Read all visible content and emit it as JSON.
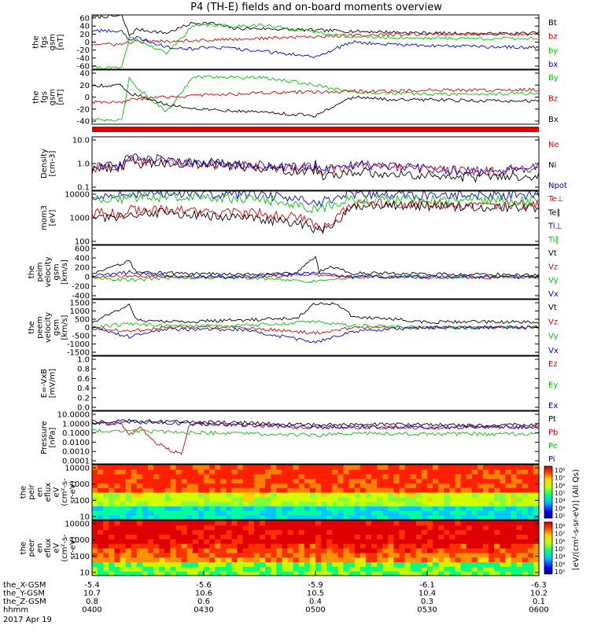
{
  "title": "P4 (TH-E) fields and on-board moments overview",
  "x_axis": {
    "hhmm_ticks": [
      "0400",
      "0430",
      "0500",
      "0530",
      "0600"
    ],
    "rows": [
      {
        "label": "the_X-GSM",
        "values": [
          "-5.4",
          "-5.6",
          "-5.9",
          "-6.1",
          "-6.3"
        ]
      },
      {
        "label": "the_Y-GSM",
        "values": [
          "10.7",
          "10.6",
          "10.5",
          "10.4",
          "10.2"
        ]
      },
      {
        "label": "the_Z-GSM",
        "values": [
          "0.8",
          "0.6",
          "0.4",
          "0.3",
          "0.1"
        ]
      },
      {
        "label": "hhmm",
        "values": [
          "0400",
          "0430",
          "0500",
          "0530",
          "0600"
        ]
      }
    ],
    "date": "2017 Apr 19"
  },
  "colorbar_label": "[eV/(cm²-s-sr-eV)] (All Qs)",
  "colorbar_ticks": [
    "10⁸",
    "10⁷",
    "10⁶",
    "10⁵",
    "10⁴",
    "10³",
    "10²"
  ],
  "colors": {
    "black": "#000000",
    "red": "#e00000",
    "green": "#00c800",
    "blue": "#0000e0"
  },
  "chart_data": [
    {
      "type": "line",
      "panel": "fgs_gsm",
      "ylabel_lines": [
        "the",
        "fgs",
        "gsm",
        "[nT]"
      ],
      "yticks": [
        "60",
        "40",
        "20",
        "0",
        "-20",
        "-40",
        "-60"
      ],
      "ylim": [
        -60,
        60
      ],
      "x_unit": "minutes after 0400",
      "series": [
        {
          "name": "Bt",
          "color": "#000000",
          "x": [
            0,
            8,
            10,
            12,
            20,
            27,
            32,
            38,
            45,
            60,
            70,
            80,
            90,
            105,
            120
          ],
          "y": [
            55,
            58,
            15,
            28,
            20,
            42,
            42,
            30,
            30,
            26,
            24,
            22,
            20,
            18,
            20
          ]
        },
        {
          "name": "bz",
          "color": "#e00000",
          "x": [
            0,
            8,
            10,
            20,
            32,
            45,
            60,
            70,
            80,
            90,
            105,
            120
          ],
          "y": [
            -5,
            -5,
            0,
            2,
            5,
            8,
            12,
            15,
            16,
            18,
            17,
            18
          ]
        },
        {
          "name": "by",
          "color": "#00c800",
          "x": [
            0,
            8,
            10,
            12,
            20,
            27,
            32,
            38,
            45,
            60,
            70,
            80,
            90,
            105,
            120
          ],
          "y": [
            -55,
            -58,
            10,
            5,
            -25,
            35,
            38,
            35,
            38,
            22,
            12,
            10,
            9,
            8,
            8
          ]
        },
        {
          "name": "bx",
          "color": "#0000e0",
          "x": [
            0,
            8,
            10,
            12,
            20,
            27,
            32,
            38,
            45,
            60,
            70,
            80,
            90,
            105,
            120
          ],
          "y": [
            25,
            25,
            5,
            10,
            -10,
            -15,
            -10,
            -15,
            -20,
            -32,
            0,
            -5,
            -8,
            -10,
            -12
          ]
        }
      ]
    },
    {
      "type": "line",
      "panel": "fgs_gsm_mgse",
      "ylabel_lines": [
        "the",
        "fgs",
        "gsm",
        "[nT]"
      ],
      "yticks": [
        "40",
        "20",
        "0",
        "-20",
        "-40"
      ],
      "ylim": [
        -55,
        55
      ],
      "series": [
        {
          "name": "By",
          "color": "#00c800",
          "x": [
            0,
            8,
            10,
            12,
            20,
            27,
            32,
            38,
            45,
            60,
            70,
            80,
            90,
            105,
            120
          ],
          "y": [
            -45,
            -48,
            40,
            20,
            -30,
            40,
            42,
            40,
            40,
            25,
            10,
            8,
            6,
            6,
            8
          ]
        },
        {
          "name": "Bz",
          "color": "#e00000",
          "x": [
            0,
            8,
            10,
            20,
            32,
            45,
            60,
            70,
            80,
            90,
            105,
            120
          ],
          "y": [
            -10,
            -12,
            -5,
            0,
            5,
            8,
            10,
            12,
            12,
            14,
            14,
            15
          ]
        },
        {
          "name": "Bx",
          "color": "#000000",
          "x": [
            0,
            8,
            10,
            12,
            20,
            27,
            32,
            38,
            45,
            60,
            70,
            80,
            90,
            105,
            120
          ],
          "y": [
            22,
            25,
            5,
            5,
            -15,
            -22,
            -25,
            -28,
            -30,
            -38,
            0,
            -5,
            -5,
            -8,
            -8
          ]
        }
      ]
    },
    {
      "type": "line",
      "panel": "density",
      "ylabel_lines": [
        "Density",
        "[cm-3]"
      ],
      "yticks": [
        "10.0",
        "1.0",
        "0.1"
      ],
      "ylim": [
        0.1,
        10
      ],
      "log": true,
      "series": [
        {
          "name": "Ne",
          "color": "#e00000",
          "x": [
            0,
            8,
            10,
            12,
            20,
            30,
            45,
            55,
            60,
            62,
            70,
            80,
            90,
            105,
            120
          ],
          "y": [
            0.7,
            0.8,
            1.8,
            1.2,
            1.2,
            1.0,
            0.8,
            0.6,
            0.8,
            0.5,
            0.9,
            0.8,
            0.6,
            0.5,
            0.6
          ]
        },
        {
          "name": "Ni",
          "color": "#000000",
          "x": [
            0,
            8,
            10,
            12,
            20,
            30,
            45,
            55,
            60,
            62,
            70,
            80,
            90,
            105,
            120
          ],
          "y": [
            0.6,
            0.7,
            1.5,
            1.0,
            1.0,
            0.9,
            0.7,
            0.5,
            0.6,
            0.3,
            0.5,
            0.4,
            0.35,
            0.3,
            0.35
          ]
        },
        {
          "name": "Npot",
          "color": "#0000e0",
          "x": [
            0,
            8,
            10,
            12,
            20,
            30,
            45,
            55,
            60,
            62,
            70,
            80,
            90,
            105,
            120
          ],
          "y": [
            0.8,
            0.9,
            2.5,
            2.0,
            1.3,
            1.1,
            0.9,
            0.7,
            0.9,
            0.6,
            0.9,
            0.8,
            0.6,
            0.5,
            0.7
          ]
        }
      ]
    },
    {
      "type": "line",
      "panel": "temperature",
      "ylabel_lines": [
        "mom3",
        "[eV]"
      ],
      "yticks": [
        "10000",
        "1000",
        "100"
      ],
      "ylim": [
        100,
        10000
      ],
      "log": true,
      "series": [
        {
          "name": "Te⊥",
          "color": "#e00000",
          "x": [
            0,
            8,
            10,
            20,
            30,
            45,
            55,
            60,
            62,
            70,
            80,
            90,
            105,
            120
          ],
          "y": [
            1500,
            1500,
            2000,
            2000,
            1600,
            1500,
            1000,
            600,
            400,
            3000,
            3500,
            3200,
            3000,
            3000
          ]
        },
        {
          "name": "Te∥",
          "color": "#000000",
          "x": [
            0,
            8,
            10,
            20,
            30,
            45,
            55,
            60,
            62,
            70,
            80,
            90,
            105,
            120
          ],
          "y": [
            1000,
            1000,
            1500,
            1600,
            1200,
            900,
            600,
            400,
            300,
            2500,
            3000,
            2800,
            2500,
            2500
          ]
        },
        {
          "name": "Ti⊥",
          "color": "#0000e0",
          "x": [
            0,
            8,
            10,
            20,
            30,
            45,
            55,
            60,
            62,
            70,
            80,
            90,
            105,
            120
          ],
          "y": [
            7000,
            7000,
            8500,
            8000,
            8000,
            7500,
            5000,
            3000,
            4000,
            8000,
            7500,
            7000,
            7000,
            7000
          ]
        },
        {
          "name": "Ti∥",
          "color": "#00c800",
          "x": [
            0,
            8,
            10,
            20,
            30,
            45,
            55,
            60,
            62,
            70,
            80,
            90,
            105,
            120
          ],
          "y": [
            5000,
            5000,
            6000,
            6000,
            6000,
            5000,
            3000,
            2000,
            2500,
            5000,
            5000,
            4800,
            4500,
            4500
          ]
        }
      ]
    },
    {
      "type": "line",
      "panel": "peim_velocity",
      "ylabel_lines": [
        "the",
        "peim",
        "velocity",
        "gsm",
        "[km/s]"
      ],
      "yticks": [
        "600",
        "400",
        "200",
        "0",
        "-200",
        "-400"
      ],
      "ylim": [
        -400,
        600
      ],
      "series": [
        {
          "name": "Vt",
          "color": "#000000",
          "x": [
            0,
            10,
            12,
            20,
            40,
            55,
            60,
            61,
            64,
            70,
            90,
            120
          ],
          "y": [
            50,
            300,
            100,
            80,
            60,
            80,
            400,
            100,
            200,
            80,
            60,
            50
          ]
        },
        {
          "name": "Vz",
          "color": "#e00000",
          "x": [
            0,
            10,
            20,
            40,
            60,
            70,
            90,
            120
          ],
          "y": [
            0,
            30,
            10,
            0,
            50,
            10,
            0,
            0
          ]
        },
        {
          "name": "Vy",
          "color": "#00c800",
          "x": [
            0,
            10,
            20,
            40,
            60,
            70,
            90,
            120
          ],
          "y": [
            0,
            -50,
            -10,
            0,
            -80,
            0,
            10,
            0
          ]
        },
        {
          "name": "Vx",
          "color": "#0000e0",
          "x": [
            0,
            10,
            20,
            40,
            60,
            70,
            90,
            120
          ],
          "y": [
            20,
            100,
            30,
            10,
            80,
            20,
            10,
            10
          ]
        }
      ]
    },
    {
      "type": "line",
      "panel": "peem_velocity",
      "ylabel_lines": [
        "the",
        "peem",
        "velocity",
        "gsm",
        "[km/s]"
      ],
      "yticks": [
        "1500",
        "1000",
        "500",
        "0",
        "-500",
        "-1000",
        "-1500"
      ],
      "ylim": [
        -1500,
        1500
      ],
      "series": [
        {
          "name": "Vt",
          "color": "#000000",
          "x": [
            0,
            10,
            12,
            20,
            40,
            55,
            60,
            65,
            70,
            90,
            120
          ],
          "y": [
            300,
            1200,
            400,
            300,
            400,
            500,
            1300,
            1300,
            600,
            300,
            300
          ]
        },
        {
          "name": "Vz",
          "color": "#e00000",
          "x": [
            0,
            10,
            20,
            40,
            60,
            70,
            90,
            120
          ],
          "y": [
            0,
            -200,
            0,
            0,
            -300,
            0,
            0,
            0
          ]
        },
        {
          "name": "Vy",
          "color": "#00c800",
          "x": [
            0,
            10,
            20,
            40,
            60,
            70,
            90,
            120
          ],
          "y": [
            0,
            200,
            100,
            100,
            300,
            100,
            0,
            0
          ]
        },
        {
          "name": "Vx",
          "color": "#0000e0",
          "x": [
            0,
            10,
            20,
            40,
            60,
            70,
            90,
            120
          ],
          "y": [
            0,
            -500,
            -100,
            -100,
            -800,
            -200,
            0,
            0
          ]
        }
      ]
    },
    {
      "type": "line",
      "panel": "e_field",
      "ylabel_lines": [
        "E=-VxB",
        "[mV/m]"
      ],
      "yticks": [
        "1.0",
        "0.8",
        "0.6",
        "0.4",
        "0.2",
        "0.0"
      ],
      "ylim": [
        0,
        1
      ],
      "series": [
        {
          "name": "Ez",
          "color": "#e00000",
          "x": [],
          "y": []
        },
        {
          "name": "Ey",
          "color": "#00c800",
          "x": [],
          "y": []
        },
        {
          "name": "Ex",
          "color": "#0000e0",
          "x": [],
          "y": []
        }
      ]
    },
    {
      "type": "line",
      "panel": "pressure",
      "ylabel_lines": [
        "Pressure",
        "[nPa]"
      ],
      "yticks": [
        "10.0000",
        "1.0000",
        "0.1000",
        "0.0100",
        "0.0010",
        "0.0001"
      ],
      "ylim": [
        0.0001,
        10
      ],
      "log": true,
      "series": [
        {
          "name": "Pt",
          "color": "#000000",
          "x": [
            0,
            10,
            20,
            40,
            60,
            70,
            90,
            120
          ],
          "y": [
            1.0,
            1.2,
            1.0,
            0.8,
            0.5,
            0.6,
            0.5,
            0.5
          ]
        },
        {
          "name": "Pb",
          "color": "#e00000",
          "x": [
            0,
            8,
            10,
            13,
            16,
            20,
            24,
            25,
            26,
            30,
            40,
            55,
            60,
            70,
            90,
            120
          ],
          "y": [
            0.7,
            0.7,
            0.05,
            0.3,
            0.02,
            0.003,
            0.0008,
            0.01,
            0.5,
            0.6,
            0.5,
            0.3,
            0.3,
            0.3,
            0.3,
            0.35
          ]
        },
        {
          "name": "Pe",
          "color": "#00c800",
          "x": [
            0,
            10,
            20,
            40,
            60,
            70,
            90,
            120
          ],
          "y": [
            0.12,
            0.15,
            0.1,
            0.08,
            0.05,
            0.08,
            0.07,
            0.07
          ]
        },
        {
          "name": "Pi",
          "color": "#0000e0",
          "x": [
            0,
            10,
            20,
            40,
            60,
            70,
            90,
            120
          ],
          "y": [
            0.6,
            0.9,
            0.8,
            0.5,
            0.3,
            0.3,
            0.3,
            0.3
          ]
        }
      ]
    },
    {
      "type": "heatmap",
      "panel": "peir_en_eflux",
      "ylabel_lines": [
        "the",
        "peir",
        "en",
        "eflux",
        "eV",
        "(cm²-s-",
        "sr-eV)"
      ],
      "yticks": [
        "10000",
        "1000",
        "100",
        "10"
      ],
      "ylim": [
        5,
        30000
      ],
      "log": true,
      "z_unit": "eV/(cm²-s-sr-eV)",
      "zlim": [
        100,
        100000000
      ]
    },
    {
      "type": "heatmap",
      "panel": "peer_en_eflux",
      "ylabel_lines": [
        "the",
        "peer",
        "en",
        "eflux",
        "eV",
        "(cm²-s-",
        "sr-eV)"
      ],
      "yticks": [
        "10000",
        "1000",
        "100",
        "10"
      ],
      "ylim": [
        5,
        30000
      ],
      "log": true,
      "z_unit": "eV/(cm²-s-sr-eV)",
      "zlim": [
        100,
        100000000
      ]
    }
  ]
}
